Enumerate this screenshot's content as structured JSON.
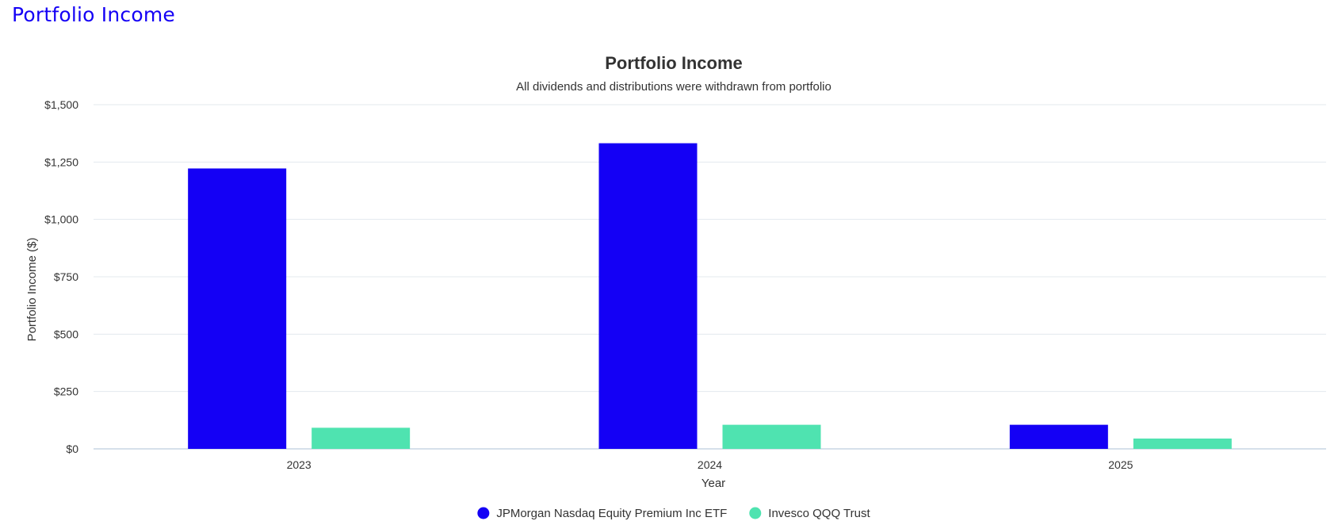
{
  "page": {
    "heading": "Portfolio Income"
  },
  "chart_data": {
    "type": "bar",
    "title": "Portfolio Income",
    "subtitle": "All dividends and distributions were withdrawn from portfolio",
    "xlabel": "Year",
    "ylabel": "Portfolio Income ($)",
    "categories": [
      "2023",
      "2024",
      "2025"
    ],
    "series": [
      {
        "name": "JPMorgan Nasdaq Equity Premium Inc ETF",
        "color": "#1400f5",
        "values": [
          1222,
          1332,
          105
        ]
      },
      {
        "name": "Invesco QQQ Trust",
        "color": "#4fe3b0",
        "values": [
          92,
          105,
          45
        ]
      }
    ],
    "ylim": [
      0,
      1500
    ],
    "yticks": [
      {
        "value": 0,
        "label": "$0"
      },
      {
        "value": 250,
        "label": "$250"
      },
      {
        "value": 500,
        "label": "$500"
      },
      {
        "value": 750,
        "label": "$750"
      },
      {
        "value": 1000,
        "label": "$1,000"
      },
      {
        "value": 1250,
        "label": "$1,250"
      },
      {
        "value": 1500,
        "label": "$1,500"
      }
    ],
    "grid": true,
    "legend_position": "bottom-center"
  }
}
